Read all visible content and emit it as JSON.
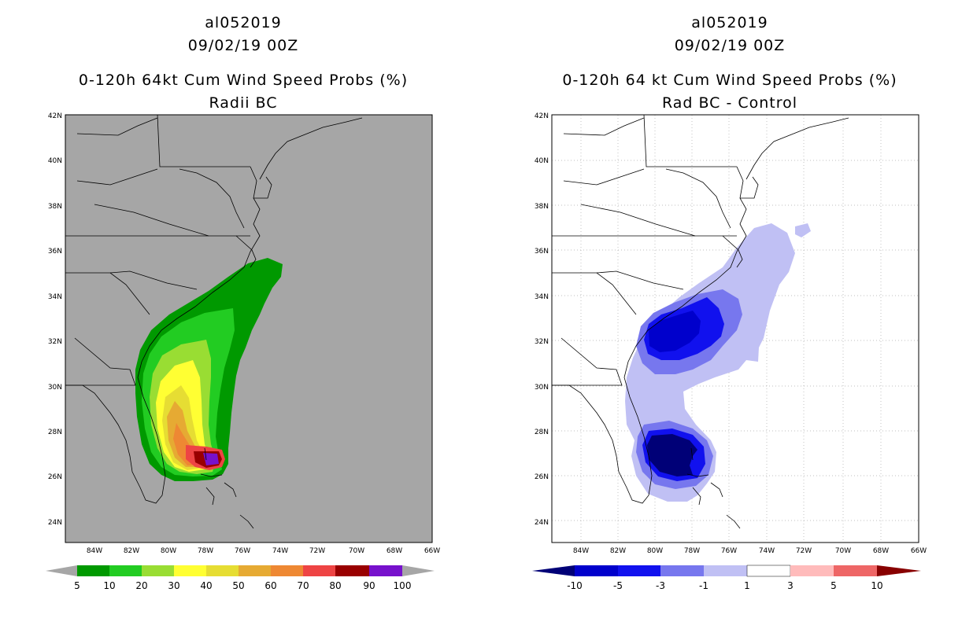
{
  "left_panel": {
    "storm_id": "al052019",
    "datetime": "09/02/19 00Z",
    "title": "0-120h 64kt Cum Wind Speed Probs (%)",
    "subtitle": "Radii BC",
    "colorbar": {
      "labels": [
        "5",
        "10",
        "20",
        "30",
        "40",
        "50",
        "60",
        "70",
        "80",
        "90",
        "100"
      ],
      "colors": [
        "#009900",
        "#22cc22",
        "#99dd33",
        "#ffff33",
        "#e6dd33",
        "#e6aa33",
        "#ee8833",
        "#ee4444",
        "#990000",
        "#7711cc"
      ],
      "under_color": "#a6a6a6",
      "over_color": "#a6a6a6"
    },
    "background_color": "#a6a6a6"
  },
  "right_panel": {
    "storm_id": "al052019",
    "datetime": "09/02/19 00Z",
    "title": "0-120h 64 kt Cum Wind Speed Probs (%)",
    "subtitle": "Rad BC - Control",
    "colorbar": {
      "labels": [
        "-10",
        "-5",
        "-3",
        "-1",
        "1",
        "3",
        "5",
        "10"
      ],
      "colors": [
        "#0000cc",
        "#1111ee",
        "#7777ee",
        "#c0c0f4",
        "#ffffff",
        "#ffbbbb",
        "#ee6666",
        "#ee0000"
      ],
      "under_color": "#000077",
      "over_color": "#880000"
    },
    "background_color": "#ffffff"
  },
  "axes": {
    "lat_ticks": [
      "42N",
      "40N",
      "38N",
      "36N",
      "34N",
      "32N",
      "30N",
      "28N",
      "26N",
      "24N"
    ],
    "lon_ticks": [
      "84W",
      "82W",
      "80W",
      "78W",
      "76W",
      "74W",
      "72W",
      "70W",
      "68W",
      "66W"
    ]
  }
}
